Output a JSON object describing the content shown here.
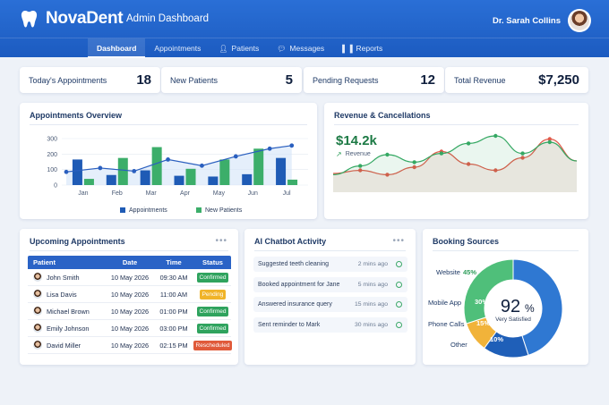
{
  "app": {
    "name": "NovaDent",
    "title": "Admin Dashboard",
    "user": "Dr. Sarah Collins"
  },
  "nav": [
    {
      "label": "Dashboard",
      "icon": "home-icon",
      "active": true
    },
    {
      "label": "Appointments",
      "icon": "calendar-icon",
      "active": false
    },
    {
      "label": "Patients",
      "icon": "user-icon",
      "active": false
    },
    {
      "label": "Messages",
      "icon": "chat-icon",
      "active": false
    },
    {
      "label": "Reports",
      "icon": "bar-chart-icon",
      "active": false
    }
  ],
  "stats": [
    {
      "label": "Today's Appointments",
      "value": "18"
    },
    {
      "label": "New Patients",
      "value": "5"
    },
    {
      "label": "Pending Requests",
      "value": "12"
    },
    {
      "label": "Total Revenue",
      "value": "$7,250"
    }
  ],
  "appointments_overview": {
    "title": "Appointments Overview",
    "chart_data": {
      "type": "bar",
      "categories": [
        "Jan",
        "Feb",
        "Mar",
        "Apr",
        "May",
        "Jun",
        "Jul"
      ],
      "ylim": [
        0,
        300
      ],
      "yticks": [
        "300",
        "200",
        "100",
        "0"
      ],
      "series": [
        {
          "name": "Appointments",
          "color": "#1f5bb5",
          "values": [
            165,
            65,
            95,
            60,
            55,
            70,
            175
          ]
        },
        {
          "name": "New Patients",
          "color": "#3cae6a",
          "values": [
            40,
            175,
            245,
            105,
            165,
            235,
            35
          ]
        }
      ],
      "line": [
        85,
        110,
        90,
        165,
        125,
        185,
        235,
        255
      ],
      "legend": "bottom"
    }
  },
  "revenue": {
    "title": "Revenue & Cancellations",
    "value": "$14.2k",
    "sub": "Revenue",
    "chart_data": {
      "type": "line",
      "series": [
        {
          "name": "green",
          "color": "#35a863",
          "values": [
            28,
            42,
            60,
            48,
            62,
            78,
            90,
            62,
            80,
            50
          ]
        },
        {
          "name": "red",
          "color": "#e05a4a",
          "values": [
            30,
            35,
            28,
            40,
            65,
            45,
            35,
            55,
            85,
            50
          ]
        }
      ]
    }
  },
  "upcoming": {
    "title": "Upcoming Appointments",
    "columns": [
      "Patient",
      "Date",
      "Time",
      "Status"
    ],
    "rows": [
      {
        "name": "John Smith",
        "date": "10 May 2026",
        "time": "09:30 AM",
        "status": "Confirmed",
        "color": "#2fa35e"
      },
      {
        "name": "Lisa Davis",
        "date": "10 May 2026",
        "time": "11:00 AM",
        "status": "Pending",
        "color": "#f0b429"
      },
      {
        "name": "Michael Brown",
        "date": "10 May 2026",
        "time": "01:00 PM",
        "status": "Confirmed",
        "color": "#2fa35e"
      },
      {
        "name": "Emily Johnson",
        "date": "10 May 2026",
        "time": "03:00 PM",
        "status": "Confirmed",
        "color": "#2fa35e"
      },
      {
        "name": "David Miller",
        "date": "10 May 2026",
        "time": "02:15 PM",
        "status": "Rescheduled",
        "color": "#e05a3a"
      }
    ]
  },
  "chatbot": {
    "title": "AI Chatbot Activity",
    "items": [
      {
        "text": "Suggested teeth cleaning",
        "time": "2 mins ago"
      },
      {
        "text": "Booked appointment for Jane",
        "time": "5 mins ago"
      },
      {
        "text": "Answered insurance query",
        "time": "15 mins ago"
      },
      {
        "text": "Sent reminder to Mark",
        "time": "30 mins ago"
      }
    ]
  },
  "booking": {
    "title": "Booking Sources",
    "center_value": "92",
    "center_unit": "%",
    "center_label": "Very Satisfied",
    "chart_data": {
      "type": "pie",
      "slices": [
        {
          "label": "Website",
          "value": 45,
          "value_label": "45%",
          "color": "#2f78d2"
        },
        {
          "label": "Mobile App",
          "value": 30,
          "value_label": "30%",
          "color": "#4fbf7a"
        },
        {
          "label": "Phone Calls",
          "value": 15,
          "value_label": "15%",
          "color": "#1f5fb8"
        },
        {
          "label": "Other",
          "value": 10,
          "value_label": "10%",
          "color": "#f1b33a"
        }
      ]
    }
  }
}
